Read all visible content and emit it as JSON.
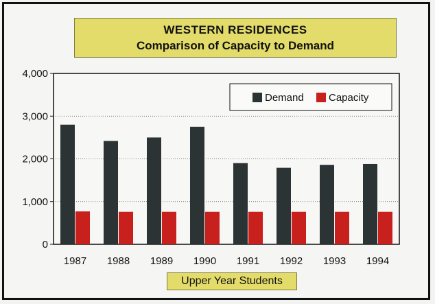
{
  "chart_data": {
    "type": "bar",
    "title": "WESTERN  RESIDENCES",
    "subtitle": "Comparison of Capacity to Demand",
    "xlabel": "Upper Year Students",
    "ylabel": "",
    "categories": [
      "1987",
      "1988",
      "1989",
      "1990",
      "1991",
      "1992",
      "1993",
      "1994"
    ],
    "series": [
      {
        "name": "Demand",
        "color": "#2b3335",
        "values": [
          2800,
          2420,
          2500,
          2750,
          1900,
          1790,
          1860,
          1880
        ]
      },
      {
        "name": "Capacity",
        "color": "#c8201c",
        "values": [
          770,
          760,
          760,
          760,
          760,
          760,
          760,
          760
        ]
      }
    ],
    "ylim": [
      0,
      4000
    ],
    "yticks": [
      0,
      1000,
      2000,
      3000,
      4000
    ],
    "ytick_labels": [
      "0",
      "1,000",
      "2,000",
      "3,000",
      "4,000"
    ],
    "grid": true,
    "legend_position": "top-right"
  }
}
